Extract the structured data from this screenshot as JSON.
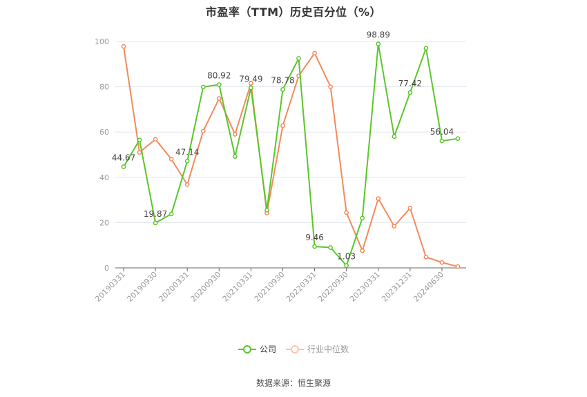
{
  "title": "市盈率（TTM）历史百分位（%）",
  "legend": {
    "company": "公司",
    "industry": "行业中位数"
  },
  "source": "数据来源：恒生聚源",
  "colors": {
    "company": "#5ac62a",
    "industry": "#f5895a",
    "grid": "#e3e6ee",
    "axis": "#666666",
    "tick_text": "#999999"
  },
  "chart_data": {
    "type": "line",
    "title": "市盈率（TTM）历史百分位（%）",
    "xlabel": "",
    "ylabel": "",
    "ylim": [
      0,
      100
    ],
    "yticks": [
      0,
      20,
      40,
      60,
      80,
      100
    ],
    "grid": true,
    "legend_position": "bottom",
    "x_tick_labels": [
      "20190331",
      "20190930",
      "20200331",
      "20200930",
      "20210331",
      "20210930",
      "20220331",
      "20220930",
      "20230331",
      "20231231",
      "20240630"
    ],
    "x_tick_indices": [
      0,
      2,
      4,
      6,
      8,
      10,
      12,
      14,
      16,
      18,
      20
    ],
    "point_count": 22,
    "series": [
      {
        "name": "公司",
        "values": [
          44.67,
          56.5,
          19.87,
          23.8,
          47.14,
          79.9,
          80.92,
          49.2,
          79.49,
          25.5,
          78.78,
          92.5,
          9.46,
          9.0,
          1.03,
          22.0,
          98.89,
          58.0,
          77.42,
          97.0,
          56.04,
          57.1
        ],
        "labeled_points": [
          {
            "index": 0,
            "text": "44.67"
          },
          {
            "index": 2,
            "text": "19.87"
          },
          {
            "index": 4,
            "text": "47.14"
          },
          {
            "index": 6,
            "text": "80.92"
          },
          {
            "index": 8,
            "text": "79.49"
          },
          {
            "index": 10,
            "text": "78.78"
          },
          {
            "index": 12,
            "text": "9.46"
          },
          {
            "index": 14,
            "text": "1.03"
          },
          {
            "index": 16,
            "text": "98.89"
          },
          {
            "index": 18,
            "text": "77.42"
          },
          {
            "index": 20,
            "text": "56.04"
          }
        ]
      },
      {
        "name": "行业中位数",
        "values": [
          97.8,
          51.0,
          56.8,
          48.0,
          36.8,
          60.4,
          74.8,
          59.0,
          81.5,
          24.2,
          62.8,
          84.8,
          94.8,
          80.0,
          24.4,
          7.6,
          30.6,
          18.4,
          26.4,
          4.8,
          2.4,
          0.6
        ]
      }
    ]
  }
}
